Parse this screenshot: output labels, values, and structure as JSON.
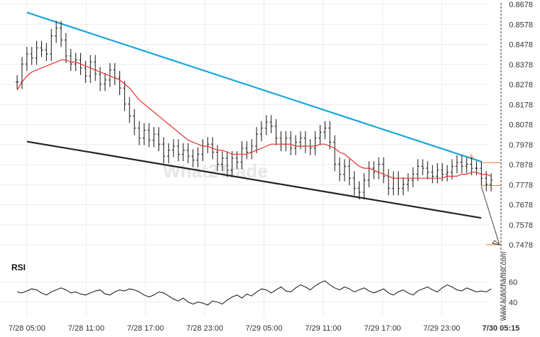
{
  "chart_data": {
    "type": "line",
    "title": "",
    "xlabel": "",
    "ylabel": "",
    "y_ticks": [
      "0.8678",
      "0.8578",
      "0.8478",
      "0.8378",
      "0.8278",
      "0.8178",
      "0.8078",
      "0.7978",
      "0.7878",
      "0.7778",
      "0.7678",
      "0.7578",
      "0.7478"
    ],
    "ylim": [
      0.7418,
      0.8678
    ],
    "xlim": [
      0,
      86
    ],
    "x_ticks": [
      {
        "label": "7/28 05:00",
        "x": 0
      },
      {
        "label": "7/28 11:00",
        "x": 12
      },
      {
        "label": "7/28 17:00",
        "x": 24
      },
      {
        "label": "7/28 23:00",
        "x": 36
      },
      {
        "label": "7/29 05:00",
        "x": 48
      },
      {
        "label": "7/29 11:00",
        "x": 60
      },
      {
        "label": "7/29 17:00",
        "x": 72
      },
      {
        "label": "7/29 23:00",
        "x": 84
      }
    ],
    "current_time_label": "7/30 05:15",
    "current_time_x": 96,
    "grid": true,
    "series": [
      {
        "values": [
          0.829,
          0.838,
          0.843,
          0.841,
          0.846,
          0.845,
          0.843,
          0.852,
          0.856,
          0.85,
          0.842,
          0.838,
          0.84,
          0.836,
          0.832,
          0.839,
          0.833,
          0.828,
          0.83,
          0.835,
          0.831,
          0.826,
          0.818,
          0.812,
          0.806,
          0.801,
          0.805,
          0.8,
          0.803,
          0.798,
          0.792,
          0.795,
          0.797,
          0.793,
          0.795,
          0.792,
          0.79,
          0.793,
          0.797,
          0.798,
          0.794,
          0.788,
          0.791,
          0.785,
          0.791,
          0.789,
          0.796,
          0.794,
          0.797,
          0.803,
          0.806,
          0.809,
          0.807,
          0.801,
          0.798,
          0.801,
          0.796,
          0.799,
          0.801,
          0.797,
          0.796,
          0.801,
          0.804,
          0.806,
          0.799,
          0.788,
          0.783,
          0.787,
          0.781,
          0.776,
          0.774,
          0.78,
          0.786,
          0.784,
          0.788,
          0.782,
          0.776,
          0.781,
          0.776,
          0.778,
          0.78,
          0.783,
          0.787,
          0.786,
          0.784,
          0.782,
          0.785,
          0.783,
          0.784,
          0.787,
          0.789,
          0.787,
          0.788,
          0.786,
          0.786,
          0.781,
          0.778,
          0.78
        ]
      },
      {
        "name": "",
        "values": [
          0.825,
          0.829,
          0.832,
          0.834,
          0.835,
          0.836,
          0.837,
          0.838,
          0.839,
          0.84,
          0.84,
          0.839,
          0.839,
          0.838,
          0.837,
          0.836,
          0.835,
          0.834,
          0.833,
          0.832,
          0.831,
          0.83,
          0.828,
          0.826,
          0.823,
          0.82,
          0.818,
          0.816,
          0.814,
          0.812,
          0.81,
          0.808,
          0.806,
          0.804,
          0.802,
          0.8,
          0.799,
          0.798,
          0.797,
          0.797,
          0.796,
          0.795,
          0.795,
          0.794,
          0.793,
          0.793,
          0.793,
          0.793,
          0.794,
          0.795,
          0.796,
          0.797,
          0.798,
          0.798,
          0.798,
          0.798,
          0.798,
          0.797,
          0.797,
          0.797,
          0.797,
          0.797,
          0.798,
          0.798,
          0.797,
          0.796,
          0.794,
          0.793,
          0.791,
          0.789,
          0.787,
          0.786,
          0.786,
          0.785,
          0.784,
          0.783,
          0.782,
          0.781,
          0.781,
          0.781,
          0.781,
          0.781,
          0.781,
          0.781,
          0.781,
          0.781,
          0.781,
          0.781,
          0.782,
          0.782,
          0.782,
          0.783,
          0.783,
          0.784,
          0.784,
          0.783,
          0.783,
          0.782
        ]
      }
    ],
    "trendlines": [
      {
        "color": "#1aa6d9",
        "x": [
          0,
          92
        ],
        "y": [
          0.8637,
          0.7893
        ]
      },
      {
        "color": "#222222",
        "x": [
          0,
          92
        ],
        "y": [
          0.7993,
          0.7612
        ]
      }
    ],
    "levels": [
      {
        "value": 0.7888,
        "x_start": 92
      },
      {
        "value": 0.7774,
        "x_start": 92
      },
      {
        "value": 0.7478,
        "x_start": 93
      }
    ],
    "projection": {
      "x": [
        92,
        112
      ],
      "y": [
        0.7771,
        0.7478
      ]
    },
    "marker": {
      "label": "A",
      "x": 90,
      "y": 0.7896
    },
    "rsi": {
      "title": "RSI",
      "y_ticks": [
        "60",
        "40"
      ],
      "ylim": [
        30,
        70
      ],
      "values": [
        50,
        49,
        51,
        53,
        52,
        49,
        47,
        50,
        52,
        54,
        52,
        49,
        50,
        48,
        47,
        49,
        51,
        52,
        48,
        47,
        50,
        52,
        51,
        53,
        52,
        50,
        47,
        45,
        47,
        50,
        49,
        46,
        43,
        41,
        44,
        40,
        38,
        40,
        39,
        37,
        41,
        40,
        38,
        42,
        45,
        47,
        44,
        48,
        46,
        50,
        53,
        52,
        49,
        52,
        55,
        51,
        50,
        54,
        57,
        55,
        52,
        56,
        59,
        61,
        57,
        54,
        52,
        55,
        53,
        50,
        52,
        54,
        51,
        49,
        51,
        53,
        49,
        47,
        50,
        52,
        49,
        47,
        51,
        53,
        55,
        52,
        50,
        54,
        57,
        55,
        52,
        51,
        54,
        52,
        50,
        51,
        50,
        53
      ]
    },
    "colors": {
      "price": "#111111",
      "moving_average": "#e8302d",
      "upper_trendline": "#1aa6d9",
      "lower_trendline": "#222222",
      "levels": "#f07a2a",
      "projection": "#444444",
      "current_time_line": "#333333",
      "grid": "#ececec"
    }
  },
  "watermark": "What2Trade",
  "side_credit": "www.autochartist.com"
}
